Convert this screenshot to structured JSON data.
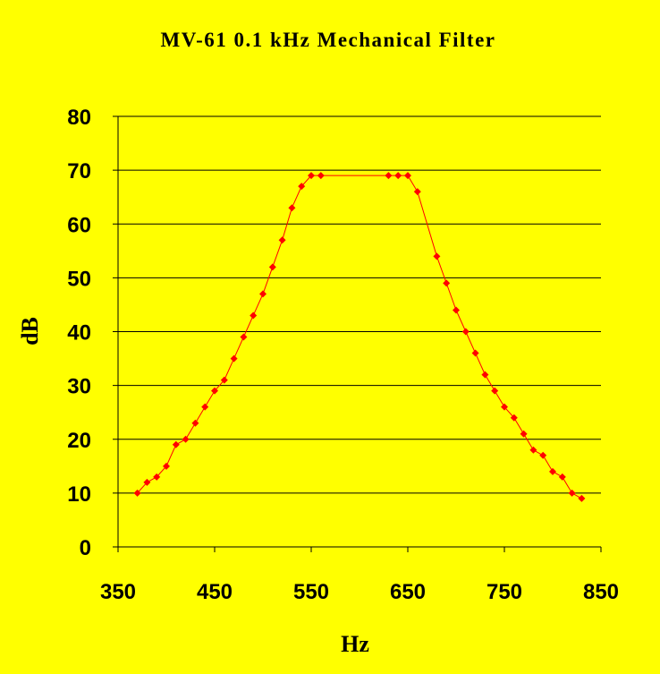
{
  "chart_data": {
    "type": "line",
    "title": "MV-61 0.1 kHz Mechanical Filter",
    "x_label": "Hz",
    "y_label": "dB",
    "x": [
      370,
      380,
      390,
      400,
      410,
      420,
      430,
      440,
      450,
      460,
      470,
      480,
      490,
      500,
      510,
      520,
      530,
      540,
      550,
      560,
      630,
      640,
      650,
      660,
      680,
      690,
      700,
      710,
      720,
      730,
      740,
      750,
      760,
      770,
      780,
      790,
      800,
      810,
      820,
      830
    ],
    "series": [
      {
        "name": "dB",
        "color": "#ff0000",
        "values": [
          10,
          12,
          13,
          15,
          19,
          20,
          23,
          26,
          29,
          31,
          35,
          39,
          43,
          47,
          52,
          57,
          63,
          67,
          69,
          69,
          69,
          69,
          69,
          66,
          54,
          49,
          44,
          40,
          36,
          32,
          29,
          26,
          24,
          21,
          18,
          17,
          14,
          13,
          10,
          9
        ]
      }
    ],
    "xlim": [
      350,
      850
    ],
    "xticks": [
      350,
      450,
      550,
      650,
      750,
      850
    ],
    "ylim": [
      0,
      80
    ],
    "yticks": [
      0,
      10,
      20,
      30,
      40,
      50,
      60,
      70,
      80
    ],
    "grid": true
  }
}
